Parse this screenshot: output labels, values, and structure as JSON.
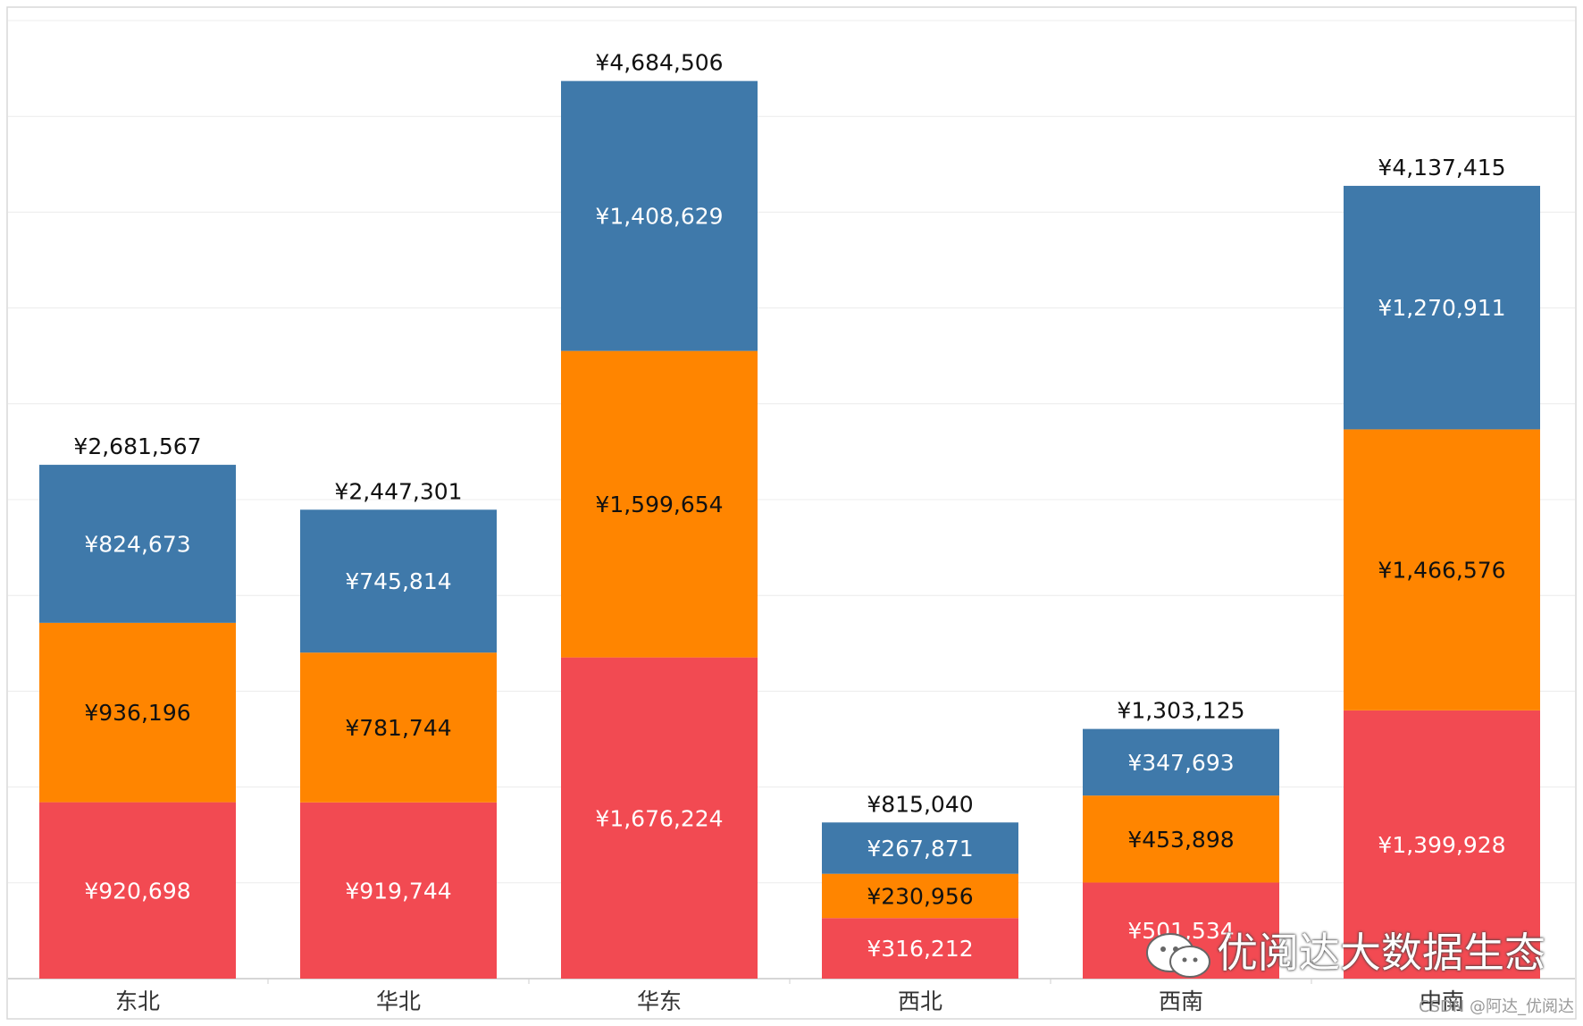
{
  "chart_data": {
    "type": "bar",
    "stacked": true,
    "categories": [
      "东北",
      "华北",
      "华东",
      "西北",
      "西南",
      "中南"
    ],
    "series": [
      {
        "name": "bottom",
        "color": "#f24a52",
        "values": [
          920698,
          919744,
          1676224,
          316212,
          501534,
          1399928
        ],
        "labels": [
          "¥920,698",
          "¥919,744",
          "¥1,676,224",
          "¥316,212",
          "¥501,534",
          "¥1,399,928"
        ]
      },
      {
        "name": "middle",
        "color": "#ff8500",
        "values": [
          936196,
          781744,
          1599654,
          230956,
          453898,
          1466576
        ],
        "labels": [
          "¥936,196",
          "¥781,744",
          "¥1,599,654",
          "¥230,956",
          "¥453,898",
          "¥1,466,576"
        ]
      },
      {
        "name": "top",
        "color": "#3f79aa",
        "values": [
          824673,
          745814,
          1408629,
          267871,
          347693,
          1270911
        ],
        "labels": [
          "¥824,673",
          "¥745,814",
          "¥1,408,629",
          "¥267,871",
          "¥347,693",
          "¥1,270,911"
        ]
      }
    ],
    "totals": [
      2681567,
      2447301,
      4684506,
      815040,
      1303125,
      4137415
    ],
    "total_labels": [
      "¥2,681,567",
      "¥2,447,301",
      "¥4,684,506",
      "¥815,040",
      "¥1,303,125",
      "¥4,137,415"
    ],
    "ylim": [
      0,
      5000000
    ],
    "grid": true,
    "title": "",
    "xlabel": "",
    "ylabel": ""
  },
  "watermark": {
    "text": "优阅达大数据生态",
    "icon": "wechat-icon"
  },
  "credit": "CSDN @阿达_优阅达"
}
